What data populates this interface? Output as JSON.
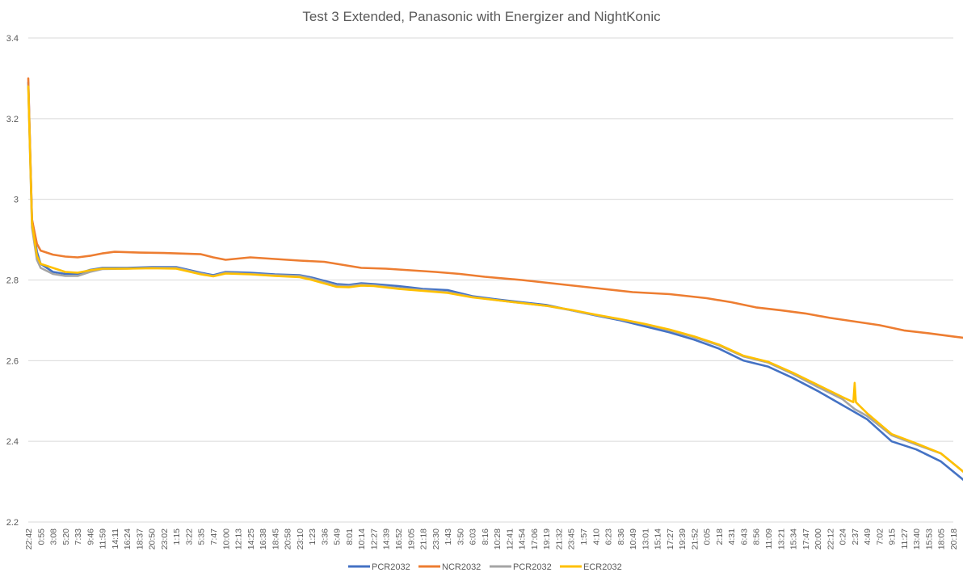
{
  "chart_data": {
    "type": "line",
    "title": "Test 3 Extended,  Panasonic with Energizer and NightKonic",
    "xlabel": "",
    "ylabel": "",
    "ylim": [
      2.2,
      3.4
    ],
    "yticks": [
      "2.2",
      "2.4",
      "2.6",
      "2.8",
      "3",
      "3.2",
      "3.4"
    ],
    "grid": true,
    "legend_position": "bottom",
    "x_labels": [
      "22:42",
      "0:55",
      "3:08",
      "5:20",
      "7:33",
      "9:46",
      "11:59",
      "14:11",
      "16:24",
      "18:37",
      "20:50",
      "23:02",
      "1:15",
      "3:22",
      "5:35",
      "7:47",
      "10:00",
      "12:13",
      "14:25",
      "16:38",
      "18:45",
      "20:58",
      "23:10",
      "1:23",
      "3:36",
      "5:49",
      "8:01",
      "10:14",
      "12:27",
      "14:39",
      "16:52",
      "19:05",
      "21:18",
      "23:30",
      "1:43",
      "3:50",
      "6:03",
      "8:16",
      "10:28",
      "12:41",
      "14:54",
      "17:06",
      "19:19",
      "21:32",
      "23:45",
      "1:57",
      "4:10",
      "6:23",
      "8:36",
      "10:49",
      "13:01",
      "15:14",
      "17:27",
      "19:39",
      "21:52",
      "0:05",
      "2:18",
      "4:31",
      "6:43",
      "8:56",
      "11:09",
      "13:21",
      "15:34",
      "17:47",
      "20:00",
      "22:12",
      "0:24",
      "2:37",
      "4:49",
      "7:02",
      "9:15",
      "11:27",
      "13:40",
      "15:53",
      "18:05",
      "20:18"
    ],
    "series": [
      {
        "name": "PCR2032",
        "color": "#4472c4",
        "values": [
          [
            0,
            3.29
          ],
          [
            0.3,
            2.95
          ],
          [
            0.7,
            2.87
          ],
          [
            1,
            2.84
          ],
          [
            2,
            2.82
          ],
          [
            3,
            2.815
          ],
          [
            4,
            2.815
          ],
          [
            5,
            2.825
          ],
          [
            6,
            2.83
          ],
          [
            8,
            2.83
          ],
          [
            10,
            2.832
          ],
          [
            12,
            2.832
          ],
          [
            14,
            2.818
          ],
          [
            15,
            2.812
          ],
          [
            16,
            2.82
          ],
          [
            18,
            2.818
          ],
          [
            20,
            2.814
          ],
          [
            22,
            2.812
          ],
          [
            23,
            2.806
          ],
          [
            25,
            2.79
          ],
          [
            26,
            2.788
          ],
          [
            27,
            2.792
          ],
          [
            28,
            2.79
          ],
          [
            30,
            2.785
          ],
          [
            32,
            2.778
          ],
          [
            34,
            2.775
          ],
          [
            36,
            2.76
          ],
          [
            38,
            2.752
          ],
          [
            40,
            2.745
          ],
          [
            42,
            2.738
          ],
          [
            44,
            2.725
          ],
          [
            46,
            2.712
          ],
          [
            48,
            2.7
          ],
          [
            50,
            2.685
          ],
          [
            52,
            2.67
          ],
          [
            54,
            2.652
          ],
          [
            56,
            2.63
          ],
          [
            58,
            2.6
          ],
          [
            60,
            2.585
          ],
          [
            62,
            2.557
          ],
          [
            64,
            2.525
          ],
          [
            66,
            2.49
          ],
          [
            68,
            2.455
          ],
          [
            70,
            2.4
          ],
          [
            72,
            2.38
          ],
          [
            74,
            2.35
          ],
          [
            76,
            2.3
          ],
          [
            78,
            2.27
          ],
          [
            80,
            2.248
          ],
          [
            81,
            2.225
          ]
        ]
      },
      {
        "name": "NCR2032",
        "color": "#ed7d31",
        "values": [
          [
            0,
            3.3
          ],
          [
            0.3,
            2.95
          ],
          [
            0.7,
            2.89
          ],
          [
            1,
            2.873
          ],
          [
            2,
            2.863
          ],
          [
            3,
            2.858
          ],
          [
            4,
            2.856
          ],
          [
            5,
            2.86
          ],
          [
            6,
            2.866
          ],
          [
            7,
            2.87
          ],
          [
            9,
            2.868
          ],
          [
            11,
            2.867
          ],
          [
            14,
            2.864
          ],
          [
            15,
            2.856
          ],
          [
            16,
            2.85
          ],
          [
            18,
            2.856
          ],
          [
            20,
            2.852
          ],
          [
            22,
            2.848
          ],
          [
            24,
            2.845
          ],
          [
            26,
            2.835
          ],
          [
            27,
            2.83
          ],
          [
            29,
            2.828
          ],
          [
            31,
            2.824
          ],
          [
            33,
            2.82
          ],
          [
            35,
            2.815
          ],
          [
            37,
            2.808
          ],
          [
            40,
            2.8
          ],
          [
            43,
            2.79
          ],
          [
            46,
            2.78
          ],
          [
            49,
            2.77
          ],
          [
            52,
            2.765
          ],
          [
            55,
            2.755
          ],
          [
            57,
            2.745
          ],
          [
            59,
            2.732
          ],
          [
            61,
            2.725
          ],
          [
            63,
            2.717
          ],
          [
            65,
            2.706
          ],
          [
            67,
            2.697
          ],
          [
            69,
            2.688
          ],
          [
            71,
            2.675
          ],
          [
            73,
            2.668
          ],
          [
            75,
            2.66
          ],
          [
            77,
            2.652
          ],
          [
            79,
            2.643
          ],
          [
            81,
            2.637
          ]
        ]
      },
      {
        "name": "PCR2032",
        "color": "#a5a5a5",
        "values": [
          [
            0,
            3.28
          ],
          [
            0.3,
            2.93
          ],
          [
            0.7,
            2.85
          ],
          [
            1,
            2.83
          ],
          [
            2,
            2.815
          ],
          [
            3,
            2.81
          ],
          [
            4,
            2.81
          ],
          [
            5,
            2.82
          ],
          [
            6,
            2.827
          ],
          [
            8,
            2.828
          ],
          [
            10,
            2.83
          ],
          [
            12,
            2.83
          ],
          [
            14,
            2.816
          ],
          [
            15,
            2.81
          ],
          [
            16,
            2.818
          ],
          [
            18,
            2.815
          ],
          [
            20,
            2.812
          ],
          [
            22,
            2.81
          ],
          [
            23,
            2.803
          ],
          [
            25,
            2.786
          ],
          [
            26,
            2.785
          ],
          [
            27,
            2.789
          ],
          [
            28,
            2.787
          ],
          [
            30,
            2.78
          ],
          [
            32,
            2.775
          ],
          [
            34,
            2.77
          ],
          [
            36,
            2.758
          ],
          [
            38,
            2.75
          ],
          [
            40,
            2.743
          ],
          [
            42,
            2.736
          ],
          [
            44,
            2.725
          ],
          [
            46,
            2.713
          ],
          [
            48,
            2.702
          ],
          [
            50,
            2.69
          ],
          [
            52,
            2.675
          ],
          [
            54,
            2.658
          ],
          [
            56,
            2.638
          ],
          [
            58,
            2.61
          ],
          [
            60,
            2.595
          ],
          [
            62,
            2.567
          ],
          [
            64,
            2.535
          ],
          [
            66,
            2.505
          ],
          [
            67,
            2.48
          ],
          [
            68,
            2.463
          ],
          [
            70,
            2.415
          ],
          [
            72,
            2.392
          ],
          [
            74,
            2.37
          ],
          [
            76,
            2.32
          ],
          [
            78,
            2.285
          ],
          [
            80,
            2.258
          ],
          [
            81,
            2.235
          ]
        ]
      },
      {
        "name": "ECR2032",
        "color": "#ffc000",
        "values": [
          [
            0,
            3.28
          ],
          [
            0.3,
            2.94
          ],
          [
            0.7,
            2.86
          ],
          [
            1,
            2.84
          ],
          [
            2,
            2.83
          ],
          [
            3,
            2.82
          ],
          [
            4,
            2.818
          ],
          [
            5,
            2.824
          ],
          [
            6,
            2.828
          ],
          [
            8,
            2.828
          ],
          [
            10,
            2.829
          ],
          [
            12,
            2.828
          ],
          [
            14,
            2.814
          ],
          [
            15,
            2.809
          ],
          [
            16,
            2.816
          ],
          [
            18,
            2.814
          ],
          [
            20,
            2.81
          ],
          [
            22,
            2.807
          ],
          [
            23,
            2.8
          ],
          [
            25,
            2.783
          ],
          [
            26,
            2.782
          ],
          [
            27,
            2.786
          ],
          [
            28,
            2.785
          ],
          [
            30,
            2.778
          ],
          [
            32,
            2.773
          ],
          [
            34,
            2.768
          ],
          [
            36,
            2.757
          ],
          [
            38,
            2.75
          ],
          [
            40,
            2.743
          ],
          [
            42,
            2.736
          ],
          [
            44,
            2.726
          ],
          [
            46,
            2.714
          ],
          [
            48,
            2.703
          ],
          [
            50,
            2.691
          ],
          [
            52,
            2.677
          ],
          [
            54,
            2.66
          ],
          [
            56,
            2.64
          ],
          [
            58,
            2.612
          ],
          [
            60,
            2.597
          ],
          [
            62,
            2.57
          ],
          [
            64,
            2.54
          ],
          [
            66,
            2.51
          ],
          [
            66.9,
            2.497
          ],
          [
            67,
            2.545
          ],
          [
            67.1,
            2.497
          ],
          [
            68,
            2.47
          ],
          [
            70,
            2.418
          ],
          [
            72,
            2.395
          ],
          [
            74,
            2.37
          ],
          [
            76,
            2.32
          ],
          [
            78,
            2.28
          ],
          [
            80,
            2.25
          ],
          [
            81,
            2.22
          ]
        ]
      }
    ]
  }
}
